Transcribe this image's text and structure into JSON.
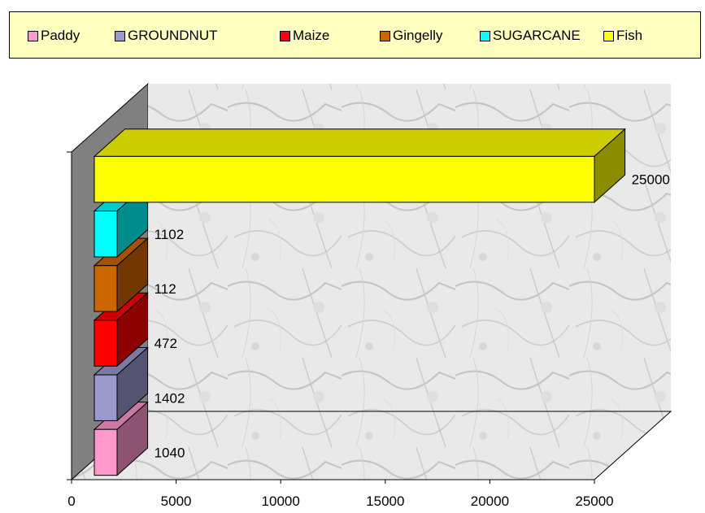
{
  "chart_data": {
    "type": "bar",
    "orientation": "horizontal",
    "style": "3d",
    "categories": [
      "Paddy",
      "GROUNDNUT",
      "Maize",
      "Gingelly",
      "SUGARCANE",
      "Fish"
    ],
    "values": [
      1040,
      1402,
      472,
      112,
      1102,
      25000
    ],
    "value_labels": [
      "1040",
      "1402",
      "472",
      "112",
      "1102",
      "25000"
    ],
    "colors": [
      "#ff99cc",
      "#9999cc",
      "#ff0000",
      "#cc6600",
      "#00ffff",
      "#ffff00"
    ],
    "xlim": [
      0,
      25000
    ],
    "x_ticks": [
      "0",
      "5000",
      "10000",
      "15000",
      "20000",
      "25000"
    ],
    "legend": "top",
    "background": "marble texture",
    "title": "",
    "xlabel": "",
    "ylabel": ""
  }
}
